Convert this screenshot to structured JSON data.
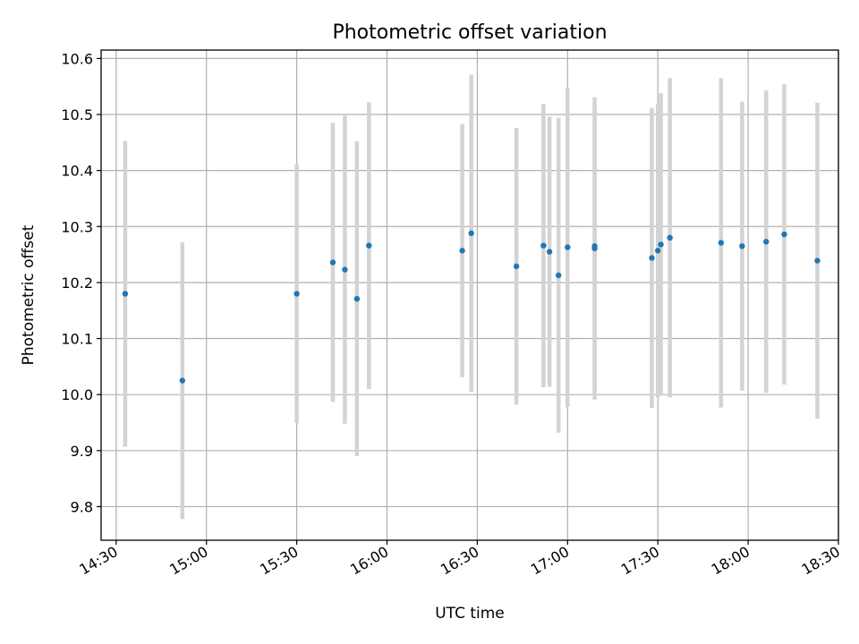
{
  "chart_data": {
    "type": "scatter",
    "title": "Photometric offset variation",
    "xlabel": "UTC time",
    "ylabel": "Photometric offset",
    "xlim": [
      "14:25",
      "18:30"
    ],
    "ylim": [
      9.74,
      10.615
    ],
    "grid": true,
    "x_ticks": [
      "14:30",
      "15:00",
      "15:30",
      "16:00",
      "16:30",
      "17:00",
      "17:30",
      "18:00",
      "18:30"
    ],
    "y_ticks": [
      "9.8",
      "9.9",
      "10.0",
      "10.1",
      "10.2",
      "10.3",
      "10.4",
      "10.5",
      "10.6"
    ],
    "colors": {
      "points": "#1f77b4",
      "errorbars": "#d3d3d3",
      "grid": "#b0b0b0"
    },
    "series": [
      {
        "points": [
          {
            "x": "14:33",
            "y": 10.18,
            "err": 0.273
          },
          {
            "x": "14:52",
            "y": 10.025,
            "err": 0.247
          },
          {
            "x": "15:30",
            "y": 10.18,
            "err": 0.231
          },
          {
            "x": "15:42",
            "y": 10.236,
            "err": 0.249
          },
          {
            "x": "15:46",
            "y": 10.223,
            "err": 0.275
          },
          {
            "x": "15:50",
            "y": 10.171,
            "err": 0.281
          },
          {
            "x": "15:54",
            "y": 10.266,
            "err": 0.256
          },
          {
            "x": "16:25",
            "y": 10.257,
            "err": 0.226
          },
          {
            "x": "16:28",
            "y": 10.288,
            "err": 0.283
          },
          {
            "x": "16:43",
            "y": 10.229,
            "err": 0.247
          },
          {
            "x": "16:52",
            "y": 10.266,
            "err": 0.253
          },
          {
            "x": "16:54",
            "y": 10.255,
            "err": 0.241
          },
          {
            "x": "16:57",
            "y": 10.213,
            "err": 0.281
          },
          {
            "x": "17:00",
            "y": 10.263,
            "err": 0.285
          },
          {
            "x": "17:09",
            "y": 10.265,
            "err": 0.255
          },
          {
            "x": "17:09",
            "y": 10.261,
            "err": 0.27
          },
          {
            "x": "17:28",
            "y": 10.244,
            "err": 0.268
          },
          {
            "x": "17:30",
            "y": 10.257,
            "err": 0.262
          },
          {
            "x": "17:31",
            "y": 10.268,
            "err": 0.27
          },
          {
            "x": "17:34",
            "y": 10.28,
            "err": 0.285
          },
          {
            "x": "17:51",
            "y": 10.271,
            "err": 0.294
          },
          {
            "x": "17:58",
            "y": 10.265,
            "err": 0.258
          },
          {
            "x": "18:06",
            "y": 10.273,
            "err": 0.27
          },
          {
            "x": "18:12",
            "y": 10.286,
            "err": 0.268
          },
          {
            "x": "18:23",
            "y": 10.239,
            "err": 0.282
          }
        ]
      }
    ]
  }
}
